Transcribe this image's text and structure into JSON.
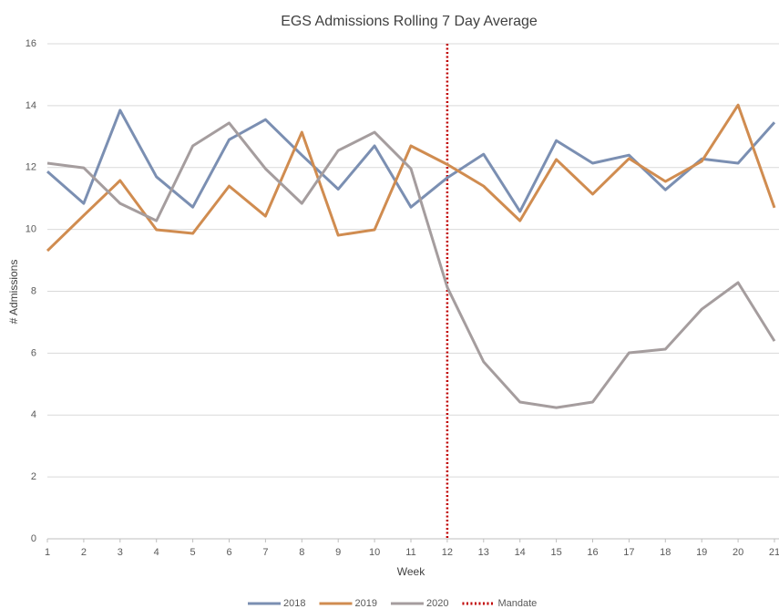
{
  "chart_data": {
    "type": "line",
    "title": "EGS Admissions Rolling 7 Day Average",
    "x_label": "Week",
    "y_label": "# Admissions",
    "x": [
      1,
      2,
      3,
      4,
      5,
      6,
      7,
      8,
      9,
      10,
      11,
      12,
      13,
      14,
      15,
      16,
      17,
      18,
      19,
      20,
      21
    ],
    "xlim": [
      1,
      21
    ],
    "xticks": [
      1,
      2,
      3,
      4,
      5,
      6,
      7,
      8,
      9,
      10,
      11,
      12,
      13,
      14,
      15,
      16,
      17,
      18,
      19,
      20,
      21
    ],
    "ylim": [
      0,
      16
    ],
    "yticks": [
      0,
      2,
      4,
      6,
      8,
      10,
      12,
      14,
      16
    ],
    "grid": true,
    "series": [
      {
        "name": "2018",
        "color": "#7b8fb2",
        "values": [
          11.87,
          10.84,
          13.85,
          11.7,
          10.72,
          12.9,
          13.55,
          12.4,
          11.3,
          12.7,
          10.72,
          11.67,
          12.43,
          10.58,
          12.87,
          12.14,
          12.4,
          11.28,
          12.28,
          12.14,
          13.46
        ]
      },
      {
        "name": "2019",
        "color": "#d08c50",
        "values": [
          9.31,
          10.45,
          11.58,
          9.99,
          9.87,
          11.4,
          10.43,
          13.14,
          9.81,
          9.99,
          12.7,
          12.1,
          11.4,
          10.28,
          12.26,
          11.14,
          12.29,
          11.55,
          12.2,
          14.02,
          10.7
        ]
      },
      {
        "name": "2020",
        "color": "#a59d9e",
        "values": [
          12.14,
          11.99,
          10.84,
          10.28,
          12.7,
          13.44,
          11.96,
          10.84,
          12.55,
          13.14,
          11.96,
          8.13,
          5.72,
          4.42,
          4.24,
          4.42,
          6.01,
          6.13,
          7.42,
          8.28,
          6.39
        ]
      }
    ],
    "mandate": {
      "name": "Mandate",
      "x": 12,
      "color": "#c00000"
    }
  }
}
